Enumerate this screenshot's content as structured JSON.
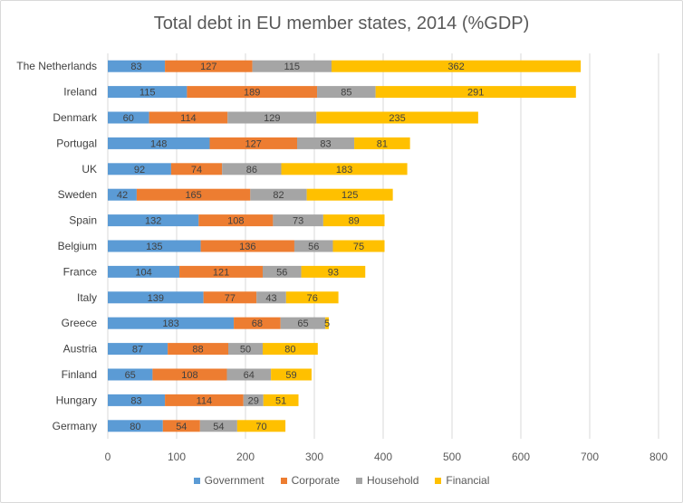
{
  "chart_data": {
    "type": "bar",
    "orientation": "horizontal",
    "stacked": true,
    "title": "Total debt in EU member states, 2014 (%GDP)",
    "categories": [
      "The Netherlands",
      "Ireland",
      "Denmark",
      "Portugal",
      "UK",
      "Sweden",
      "Spain",
      "Belgium",
      "France",
      "Italy",
      "Greece",
      "Austria",
      "Finland",
      "Hungary",
      "Germany"
    ],
    "series": [
      {
        "name": "Government",
        "color": "#5b9bd5",
        "values": [
          83,
          115,
          60,
          148,
          92,
          42,
          132,
          135,
          104,
          139,
          183,
          87,
          65,
          83,
          80
        ]
      },
      {
        "name": "Corporate",
        "color": "#ed7d31",
        "values": [
          127,
          189,
          114,
          127,
          74,
          165,
          108,
          136,
          121,
          77,
          68,
          88,
          108,
          114,
          54
        ]
      },
      {
        "name": "Household",
        "color": "#a5a5a5",
        "values": [
          115,
          85,
          129,
          83,
          86,
          82,
          73,
          56,
          56,
          43,
          65,
          50,
          64,
          29,
          54
        ]
      },
      {
        "name": "Financial",
        "color": "#ffc000",
        "values": [
          362,
          291,
          235,
          81,
          183,
          125,
          89,
          75,
          93,
          76,
          5,
          80,
          59,
          51,
          70
        ]
      }
    ],
    "xlim": [
      0,
      800
    ],
    "xticks": [
      "0",
      "100",
      "200",
      "300",
      "400",
      "500",
      "600",
      "700",
      "800"
    ],
    "grid": true,
    "legend": "bottom"
  }
}
